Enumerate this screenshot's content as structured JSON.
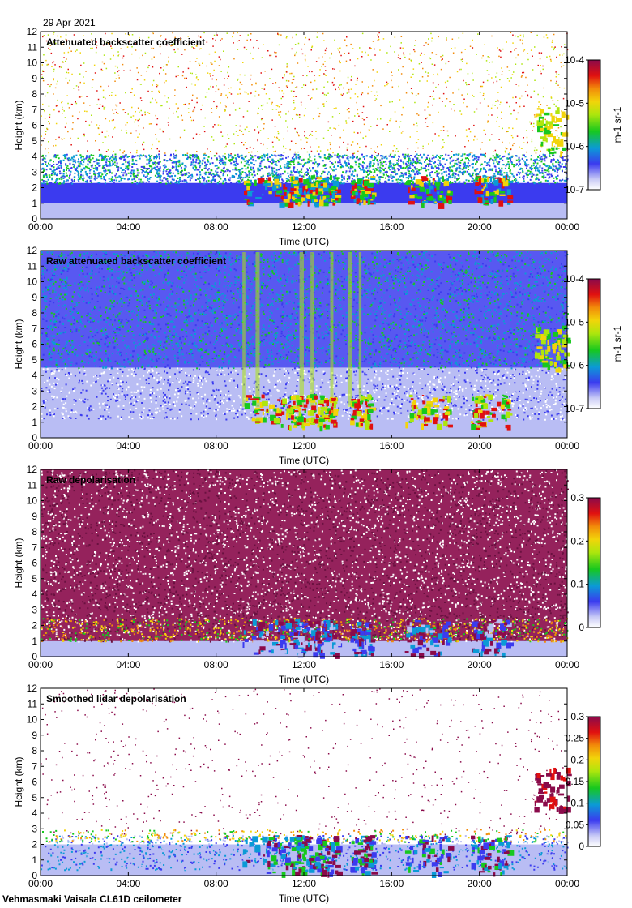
{
  "header": {
    "date": "29 Apr 2021"
  },
  "footer": {
    "text": "Vehmasmaki Vaisala CL61D ceilometer"
  },
  "chart_data": [
    {
      "type": "heatmap",
      "title": "Attenuated backscatter coefficient",
      "xlabel": "Time (UTC)",
      "ylabel": "Height (km)",
      "x_ticks": [
        "00:00",
        "04:00",
        "08:00",
        "12:00",
        "16:00",
        "20:00",
        "00:00"
      ],
      "y_ticks": [
        "0",
        "1",
        "2",
        "3",
        "4",
        "5",
        "6",
        "7",
        "8",
        "9",
        "10",
        "11",
        "12"
      ],
      "ylim": [
        0,
        12
      ],
      "colorbar": {
        "scale": "log",
        "ticks": [
          "10-7",
          "10-6",
          "10-5",
          "10-4"
        ],
        "label": "m-1 sr-1"
      },
      "style": "clean-backscatter"
    },
    {
      "type": "heatmap",
      "title": "Raw attenuated backscatter coefficient",
      "xlabel": "Time (UTC)",
      "ylabel": "Height (km)",
      "x_ticks": [
        "00:00",
        "04:00",
        "08:00",
        "12:00",
        "16:00",
        "20:00",
        "00:00"
      ],
      "y_ticks": [
        "0",
        "1",
        "2",
        "3",
        "4",
        "5",
        "6",
        "7",
        "8",
        "9",
        "10",
        "11",
        "12"
      ],
      "ylim": [
        0,
        12
      ],
      "colorbar": {
        "scale": "log",
        "ticks": [
          "10-7",
          "10-6",
          "10-5",
          "10-4"
        ],
        "label": "m-1 sr-1"
      },
      "style": "raw-backscatter"
    },
    {
      "type": "heatmap",
      "title": "Raw depolarisation",
      "xlabel": "Time (UTC)",
      "ylabel": "Height (km)",
      "x_ticks": [
        "00:00",
        "04:00",
        "08:00",
        "12:00",
        "16:00",
        "20:00",
        "00:00"
      ],
      "y_ticks": [
        "0",
        "1",
        "2",
        "3",
        "4",
        "5",
        "6",
        "7",
        "8",
        "9",
        "10",
        "11",
        "12"
      ],
      "ylim": [
        0,
        12
      ],
      "colorbar": {
        "scale": "linear",
        "ticks": [
          "0",
          "0.1",
          "0.2",
          "0.3"
        ],
        "label": ""
      },
      "style": "raw-depol"
    },
    {
      "type": "heatmap",
      "title": "Smoothed lidar depolarisation",
      "xlabel": "Time (UTC)",
      "ylabel": "Height (km)",
      "x_ticks": [
        "00:00",
        "04:00",
        "08:00",
        "12:00",
        "16:00",
        "20:00",
        "00:00"
      ],
      "y_ticks": [
        "0",
        "1",
        "2",
        "3",
        "4",
        "5",
        "6",
        "7",
        "8",
        "9",
        "10",
        "11",
        "12"
      ],
      "ylim": [
        0,
        12
      ],
      "colorbar": {
        "scale": "linear",
        "ticks": [
          "0",
          "0.05",
          "0.1",
          "0.15",
          "0.2",
          "0.25",
          "0.3"
        ],
        "label": ""
      },
      "style": "smooth-depol"
    }
  ],
  "colors": {
    "colormap": [
      "#ffffff",
      "#b9bdf4",
      "#3b3bef",
      "#0b9ad6",
      "#17c81e",
      "#aee60d",
      "#f2d40a",
      "#f28a0a",
      "#e01010",
      "#8a0a4a"
    ]
  }
}
